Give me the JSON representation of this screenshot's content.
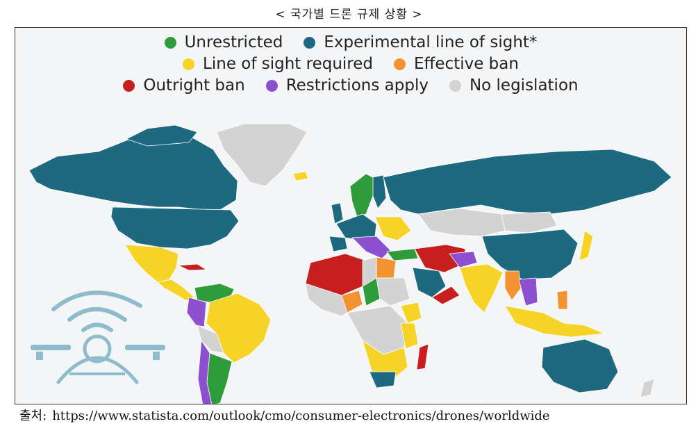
{
  "title": "< 국가별 드론 규제 상황 >",
  "colors": {
    "unrestricted": "#2e9c3a",
    "experimental": "#1d6a80",
    "line_of_sight": "#f5d327",
    "effective_ban": "#f39230",
    "outright_ban": "#c81e1e",
    "restrictions": "#8b4fcf",
    "no_legislation": "#d3d3d3",
    "drone_icon": "#8fbccc"
  },
  "legend": {
    "rows": [
      [
        {
          "key": "unrestricted",
          "label": "Unrestricted"
        },
        {
          "key": "experimental",
          "label": "Experimental line of sight*"
        }
      ],
      [
        {
          "key": "line_of_sight",
          "label": "Line of sight required"
        },
        {
          "key": "effective_ban",
          "label": "Effective ban"
        }
      ],
      [
        {
          "key": "outright_ban",
          "label": "Outright ban"
        },
        {
          "key": "restrictions",
          "label": "Restrictions apply"
        },
        {
          "key": "no_legislation",
          "label": "No legislation"
        }
      ]
    ]
  },
  "icons": {
    "drone": "drone-icon"
  },
  "source": {
    "label": "출처:",
    "url": "https://www.statista.com/outlook/cmo/consumer-electronics/drones/worldwide"
  }
}
